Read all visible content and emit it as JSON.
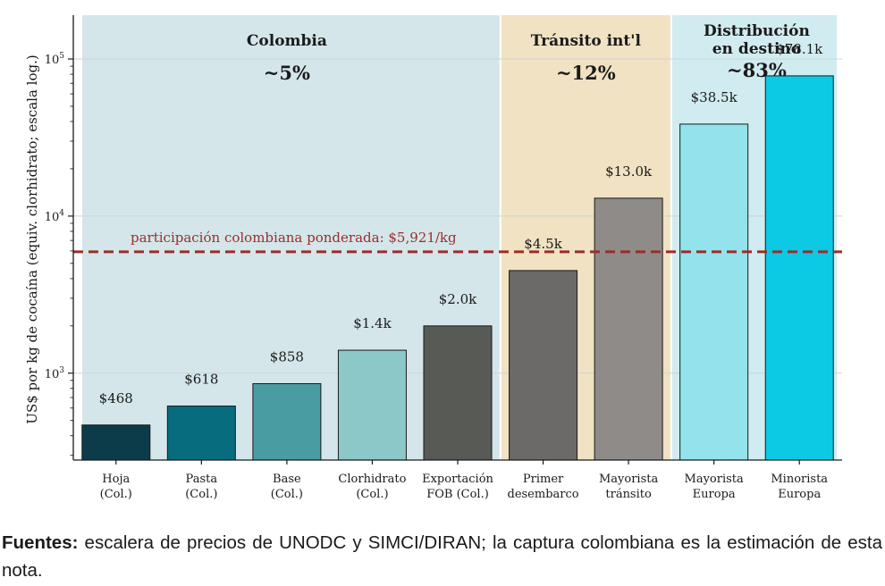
{
  "chart_data": {
    "type": "bar",
    "ylabel": "US$ por kg de cocaína (equiv. clorhidrato; escala log.)",
    "yscale": "log",
    "ylim": [
      280,
      190000
    ],
    "yticks": [
      {
        "value": 1000,
        "base": "10",
        "exp": "3"
      },
      {
        "value": 10000,
        "base": "10",
        "exp": "4"
      },
      {
        "value": 100000,
        "base": "10",
        "exp": "5"
      }
    ],
    "grid": "horizontal",
    "categories": [
      [
        "Hoja",
        "(Col.)"
      ],
      [
        "Pasta",
        "(Col.)"
      ],
      [
        "Base",
        "(Col.)"
      ],
      [
        "Clorhidrato",
        "(Col.)"
      ],
      [
        "Exportación",
        "FOB (Col.)"
      ],
      [
        "Primer",
        "desembarco"
      ],
      [
        "Mayorista",
        "tránsito"
      ],
      [
        "Mayorista",
        "Europa"
      ],
      [
        "Minorista",
        "Europa"
      ]
    ],
    "values": [
      468,
      618,
      858,
      1400,
      2000,
      4500,
      13000,
      38500,
      78100
    ],
    "value_labels": [
      "$468",
      "$618",
      "$858",
      "$1.4k",
      "$2.0k",
      "$4.5k",
      "$13.0k",
      "$38.5k",
      "$78.1k"
    ],
    "bar_colors": [
      "#0c3b4a",
      "#066c7e",
      "#4a9ca3",
      "#8cc8c8",
      "#575a55",
      "#6c6a69",
      "#8f8b89",
      "#92e3ec",
      "#0cc9e4"
    ],
    "regions": [
      {
        "title": [
          "Colombia"
        ],
        "share": "~5%",
        "bars": [
          0,
          4
        ],
        "color": "#d4e6ea"
      },
      {
        "title": [
          "Tránsito int'l"
        ],
        "share": "~12%",
        "bars": [
          5,
          6
        ],
        "color": "#f0e2c3"
      },
      {
        "title": [
          "Distribución",
          "en destino"
        ],
        "share": "~83%",
        "bars": [
          7,
          8
        ],
        "color": "#d1ecf0"
      }
    ],
    "reference_line": {
      "value": 5921,
      "label": "participación colombiana ponderada: $5,921/kg",
      "color": "#9a2e2a"
    }
  },
  "caption": {
    "source_label": "Fuentes:",
    "text": " escalera de precios de UNODC y SIMCI/DIRAN; la captura colombiana es la estimación de esta nota."
  }
}
